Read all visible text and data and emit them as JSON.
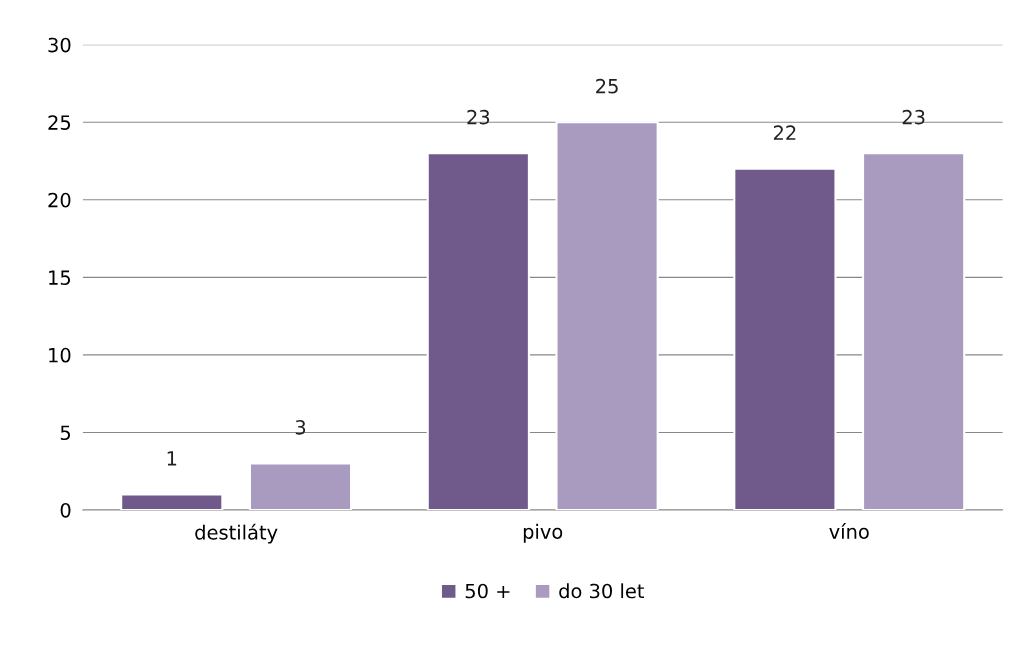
{
  "chart_data": {
    "type": "bar",
    "categories": [
      "destiláty",
      "pivo",
      "víno"
    ],
    "series": [
      {
        "name": "50 +",
        "color": "#705a8c",
        "values": [
          1,
          23,
          22
        ]
      },
      {
        "name": "do 30 let",
        "color": "#a99bbf",
        "values": [
          3,
          25,
          23
        ]
      }
    ],
    "ylim": [
      0,
      30
    ],
    "yticks": [
      0,
      5,
      10,
      15,
      20,
      25,
      30
    ],
    "grid": "y",
    "legend": "bottom",
    "data_labels": true
  }
}
